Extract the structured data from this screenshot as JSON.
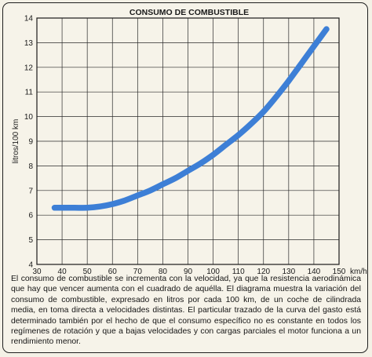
{
  "chart_data": {
    "type": "line",
    "title": "CONSUMO DE COMBUSTIBLE",
    "xlabel": "km/h",
    "ylabel": "litros/100 km",
    "xlim": [
      30,
      150
    ],
    "ylim": [
      4,
      14
    ],
    "x_ticks": [
      30,
      40,
      50,
      60,
      70,
      80,
      90,
      100,
      110,
      120,
      130,
      140,
      150
    ],
    "y_ticks": [
      4,
      5,
      6,
      7,
      8,
      9,
      10,
      11,
      12,
      13,
      14
    ],
    "grid": true,
    "series": [
      {
        "color": "#3d7fd6",
        "x": [
          37,
          40,
          45,
          50,
          55,
          60,
          65,
          70,
          75,
          80,
          85,
          90,
          95,
          100,
          105,
          110,
          115,
          120,
          125,
          130,
          135,
          140,
          145
        ],
        "y": [
          6.3,
          6.3,
          6.3,
          6.3,
          6.35,
          6.45,
          6.6,
          6.8,
          7.0,
          7.25,
          7.5,
          7.8,
          8.1,
          8.45,
          8.85,
          9.25,
          9.7,
          10.2,
          10.8,
          11.45,
          12.15,
          12.85,
          13.55
        ]
      }
    ]
  },
  "caption": "El consumo de combustible se incrementa con la velocidad, ya que la resistencia aerodinámica que hay que vencer aumenta con el cuadrado de aquélla. El diagrama muestra la variación del consumo de combustible, expresado en litros por cada 100 km, de un coche de cilindrada media, en toma directa a velocidades distintas. El particular trazado de la curva del gasto está determinado también por el hecho de que el consumo específico no es constante en todos los regímenes de rotación y que a bajas velocidades y con cargas parciales el motor funciona a un rendimiento menor."
}
